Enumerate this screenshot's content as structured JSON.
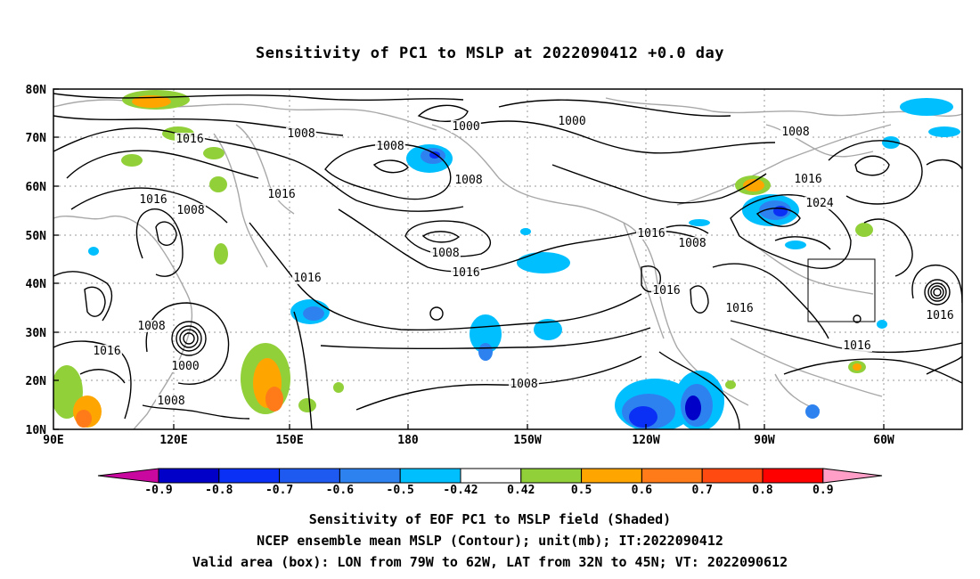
{
  "title": "Sensitivity of PC1 to MSLP at 2022090412 +0.0 day",
  "axes": {
    "lat_ticks": [
      "80N",
      "70N",
      "60N",
      "50N",
      "40N",
      "30N",
      "20N",
      "10N"
    ],
    "lon_ticks": [
      "90E",
      "120E",
      "150E",
      "180",
      "150W",
      "120W",
      "90W",
      "60W"
    ]
  },
  "contour_labels": [
    "1016",
    "1008",
    "1008",
    "1000",
    "1000",
    "1008",
    "1008",
    "1016",
    "1016",
    "1008",
    "1016",
    "1024",
    "1016",
    "1008",
    "1008",
    "1016",
    "1016",
    "1016",
    "1016",
    "1016",
    "1008",
    "1016",
    "1000",
    "1008",
    "1008",
    "1016"
  ],
  "colorbar": {
    "labels": [
      "-0.9",
      "-0.8",
      "-0.7",
      "-0.6",
      "-0.5",
      "-0.42",
      "0.42",
      "0.5",
      "0.6",
      "0.7",
      "0.8",
      "0.9"
    ],
    "colors": [
      "#c8089e",
      "#0000c8",
      "#0a2ff5",
      "#1e5af0",
      "#2e82f0",
      "#00bfff",
      "#ffffff",
      "#92d03a",
      "#ffa500",
      "#ff7a18",
      "#ff4a12",
      "#ff0000",
      "#ff9fc8"
    ]
  },
  "captions": {
    "line1": "Sensitivity of EOF PC1 to MSLP field (Shaded)",
    "line2": "NCEP ensemble mean MSLP (Contour); unit(mb); IT:2022090412",
    "line3": "Valid area (box): LON from 79W to 62W, LAT from 32N to 45N; VT: 2022090612"
  }
}
